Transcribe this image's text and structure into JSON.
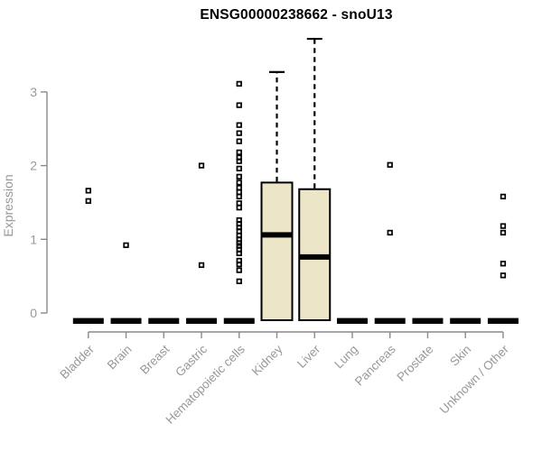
{
  "chart_data": {
    "type": "boxplot",
    "title": "ENSG00000238662 - snoU13",
    "ylabel": "Expression",
    "xlabel": "",
    "yticks": [
      0,
      1,
      2,
      3
    ],
    "ylim": [
      0,
      3.85
    ],
    "grid": false,
    "legend": null,
    "categories": [
      "Bladder",
      "Brain",
      "Breast",
      "Gastric",
      "Hematopoietic cells",
      "Kidney",
      "Liver",
      "Lung",
      "Pancreas",
      "Prostate",
      "Skin",
      "Unknown / Other"
    ],
    "boxes": [
      {
        "category": "Bladder",
        "median": 0,
        "q1": 0,
        "q3": 0,
        "whisker_low": 0,
        "whisker_high": 0,
        "outliers": [
          1.66,
          1.52
        ]
      },
      {
        "category": "Brain",
        "median": 0,
        "q1": 0,
        "q3": 0,
        "whisker_low": 0,
        "whisker_high": 0,
        "outliers": [
          0.92
        ]
      },
      {
        "category": "Breast",
        "median": 0,
        "q1": 0,
        "q3": 0,
        "whisker_low": 0,
        "whisker_high": 0,
        "outliers": []
      },
      {
        "category": "Gastric",
        "median": 0,
        "q1": 0,
        "q3": 0,
        "whisker_low": 0,
        "whisker_high": 0,
        "outliers": [
          2.0,
          0.65
        ]
      },
      {
        "category": "Hematopoietic cells",
        "median": 0,
        "q1": 0,
        "q3": 0,
        "whisker_low": 0,
        "whisker_high": 0,
        "outliers": [
          3.11,
          2.82,
          2.55,
          2.44,
          2.33,
          2.18,
          2.11,
          2.06,
          1.96,
          1.85,
          1.77,
          1.7,
          1.64,
          1.58,
          1.49,
          1.43,
          1.26,
          1.21,
          1.16,
          1.11,
          1.05,
          1.0,
          0.95,
          0.91,
          0.86,
          0.81,
          0.71,
          0.66,
          0.58,
          0.43
        ]
      },
      {
        "category": "Kidney",
        "median": 1.06,
        "q1": 0,
        "q3": 1.77,
        "whisker_low": 0,
        "whisker_high": 3.27,
        "outliers": []
      },
      {
        "category": "Liver",
        "median": 0.76,
        "q1": 0,
        "q3": 1.68,
        "whisker_low": 0,
        "whisker_high": 3.72,
        "outliers": []
      },
      {
        "category": "Lung",
        "median": 0,
        "q1": 0,
        "q3": 0,
        "whisker_low": 0,
        "whisker_high": 0,
        "outliers": []
      },
      {
        "category": "Pancreas",
        "median": 0,
        "q1": 0,
        "q3": 0,
        "whisker_low": 0,
        "whisker_high": 0,
        "outliers": [
          2.01,
          1.09
        ]
      },
      {
        "category": "Prostate",
        "median": 0,
        "q1": 0,
        "q3": 0,
        "whisker_low": 0,
        "whisker_high": 0,
        "outliers": []
      },
      {
        "category": "Skin",
        "median": 0,
        "q1": 0,
        "q3": 0,
        "whisker_low": 0,
        "whisker_high": 0,
        "outliers": []
      },
      {
        "category": "Unknown / Other",
        "median": 0,
        "q1": 0,
        "q3": 0,
        "whisker_low": 0,
        "whisker_high": 0,
        "outliers": [
          1.58,
          1.18,
          1.09,
          0.67,
          0.51
        ]
      }
    ],
    "colors": {
      "box_fill": "#ece5c8",
      "box_border": "#000000",
      "median": "#000000",
      "whisker": "#000000",
      "outlier": "#000000",
      "axis_line": "#8a8a8a",
      "tick_label": "#989898",
      "title": "#000000"
    }
  }
}
